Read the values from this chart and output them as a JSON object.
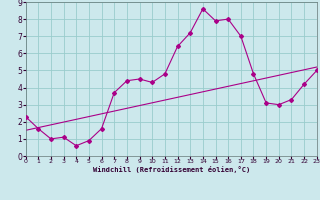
{
  "xlabel": "Windchill (Refroidissement éolien,°C)",
  "xlim": [
    0,
    23
  ],
  "ylim": [
    0,
    9
  ],
  "xticks": [
    0,
    1,
    2,
    3,
    4,
    5,
    6,
    7,
    8,
    9,
    10,
    11,
    12,
    13,
    14,
    15,
    16,
    17,
    18,
    19,
    20,
    21,
    22,
    23
  ],
  "yticks": [
    0,
    1,
    2,
    3,
    4,
    5,
    6,
    7,
    8,
    9
  ],
  "background_color": "#cce8ec",
  "line_color": "#aa0088",
  "grid_color": "#99cccc",
  "curve1_x": [
    0,
    1,
    2,
    3,
    4,
    5,
    6,
    7,
    8,
    9,
    10,
    11,
    12,
    13,
    14,
    15,
    16,
    17,
    18,
    19,
    20,
    21,
    22,
    23
  ],
  "curve1_y": [
    2.3,
    1.6,
    1.0,
    1.1,
    0.6,
    0.9,
    1.6,
    3.7,
    4.4,
    4.5,
    4.3,
    4.8,
    6.4,
    7.2,
    8.6,
    7.9,
    8.0,
    7.0,
    4.8,
    3.1,
    3.0,
    3.3,
    4.2,
    5.0
  ],
  "curve2_x": [
    0,
    23
  ],
  "curve2_y": [
    1.5,
    5.2
  ]
}
